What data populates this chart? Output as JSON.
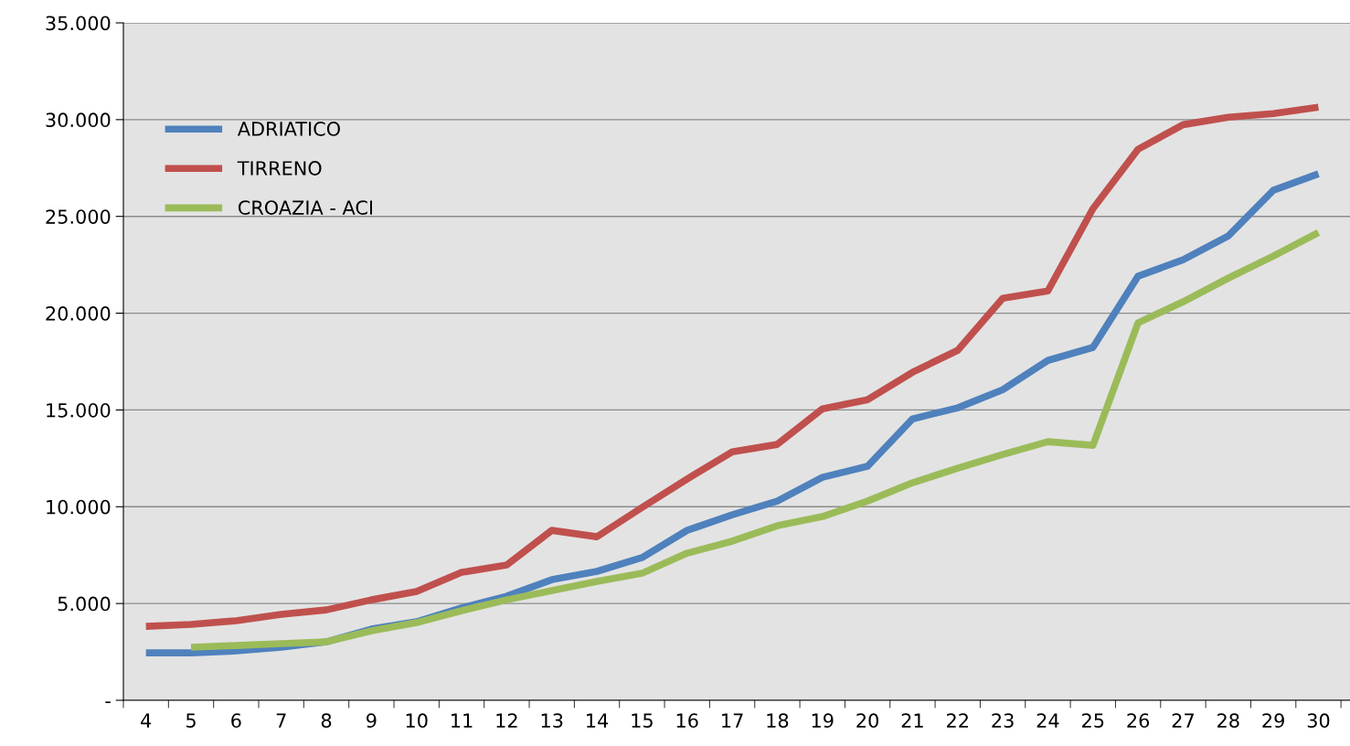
{
  "chart_data": {
    "type": "line",
    "categories": [
      "4",
      "5",
      "6",
      "7",
      "8",
      "9",
      "10",
      "11",
      "12",
      "13",
      "14",
      "15",
      "16",
      "17",
      "18",
      "19",
      "20",
      "21",
      "22",
      "23",
      "24",
      "25",
      "26",
      "27",
      "28",
      "29",
      "30"
    ],
    "series": [
      {
        "name": "ADRIATICO",
        "color": "#4f81bd",
        "values": [
          2450,
          2450,
          2550,
          2740,
          3020,
          3680,
          4060,
          4770,
          5380,
          6230,
          6660,
          7370,
          8780,
          9580,
          10290,
          11520,
          12090,
          14540,
          15110,
          16050,
          17560,
          18230,
          21910,
          22760,
          23990,
          26350,
          27200
        ]
      },
      {
        "name": "TIRRENO",
        "color": "#c0504d",
        "values": [
          3820,
          3920,
          4110,
          4440,
          4670,
          5190,
          5620,
          6610,
          6990,
          8780,
          8450,
          9960,
          11430,
          12840,
          13220,
          15060,
          15530,
          16950,
          18080,
          20770,
          21150,
          25400,
          28470,
          29740,
          30120,
          30310,
          30640
        ]
      },
      {
        "name": "CROAZIA - ACI",
        "color": "#9bbb59",
        "values": [
          null,
          2740,
          2830,
          2930,
          3020,
          3590,
          4010,
          4630,
          5190,
          5670,
          6140,
          6560,
          7600,
          8220,
          9020,
          9490,
          10290,
          11240,
          11990,
          12700,
          13360,
          13170,
          19500,
          20590,
          21810,
          22950,
          24170
        ]
      }
    ],
    "ylim": [
      0,
      35000
    ],
    "yticks": [
      {
        "value": 0,
        "label": "-"
      },
      {
        "value": 5000,
        "label": "5.000"
      },
      {
        "value": 10000,
        "label": "10.000"
      },
      {
        "value": 15000,
        "label": "15.000"
      },
      {
        "value": 20000,
        "label": "20.000"
      },
      {
        "value": 25000,
        "label": "25.000"
      },
      {
        "value": 30000,
        "label": "30.000"
      },
      {
        "value": 35000,
        "label": "35.000"
      }
    ],
    "grid": "y",
    "legend": "top left",
    "marker": "none",
    "line_style": "solid"
  }
}
